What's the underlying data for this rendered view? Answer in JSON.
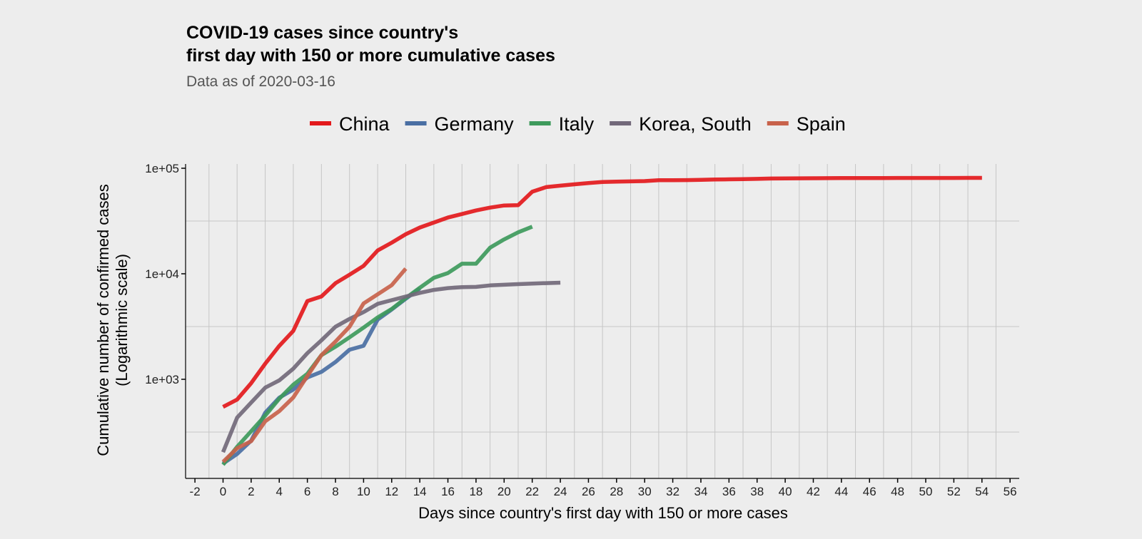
{
  "chart_data": {
    "type": "line",
    "title": [
      "COVID-19 cases since country's",
      "first day with 150 or more cumulative cases"
    ],
    "subtitle": "Data as of 2020-03-16",
    "xlabel": "Days since country's first day with 150 or more cases",
    "ylabel": [
      "Cumulative number of confirmed cases",
      "(Logarithmic scale)"
    ],
    "yscale": "log",
    "xlim": [
      -3,
      57
    ],
    "ylim": [
      115,
      112000
    ],
    "xticks": [
      -2,
      0,
      2,
      4,
      6,
      8,
      10,
      12,
      14,
      16,
      18,
      20,
      22,
      24,
      26,
      28,
      30,
      32,
      34,
      36,
      38,
      40,
      42,
      44,
      46,
      48,
      50,
      52,
      54,
      56
    ],
    "yticks": [
      {
        "value": 1000,
        "label": "1e+03"
      },
      {
        "value": 10000,
        "label": "1e+04"
      },
      {
        "value": 100000,
        "label": "1e+05"
      }
    ],
    "grid": true,
    "legend_position": "top",
    "series": [
      {
        "name": "China",
        "color": "#e3191c",
        "values": [
          548,
          643,
          920,
          1406,
          2075,
          2877,
          5509,
          6087,
          8141,
          9802,
          11891,
          16630,
          19716,
          23707,
          27440,
          30587,
          34110,
          36814,
          39829,
          42354,
          44386,
          44759,
          59895,
          66358,
          68413,
          70513,
          72434,
          74211,
          74619,
          75077,
          75550,
          77001,
          77022,
          77241,
          77754,
          78166,
          78600,
          78928,
          79356,
          79932,
          80136,
          80261,
          80386,
          80537,
          80690,
          80770,
          80823,
          80860,
          80887,
          80921,
          80932,
          80945,
          80977,
          81003,
          81033
        ]
      },
      {
        "name": "Germany",
        "color": "#4a6fa3",
        "values": [
          159,
          196,
          262,
          482,
          670,
          799,
          1040,
          1176,
          1457,
          1908,
          2078,
          3675,
          4585,
          5795,
          7272
        ]
      },
      {
        "name": "Italy",
        "color": "#3e9a5c",
        "values": [
          155,
          229,
          322,
          453,
          655,
          888,
          1128,
          1694,
          2036,
          2502,
          3089,
          3858,
          4636,
          5883,
          7375,
          9172,
          10149,
          12462,
          12462,
          17660,
          21157,
          24747,
          27980
        ]
      },
      {
        "name": "Korea, South",
        "color": "#72697a",
        "values": [
          204,
          433,
          602,
          833,
          977,
          1261,
          1766,
          2337,
          3150,
          3736,
          4335,
          5186,
          5621,
          6088,
          6593,
          7041,
          7314,
          7478,
          7513,
          7755,
          7869,
          7979,
          8086,
          8162,
          8236
        ]
      },
      {
        "name": "Spain",
        "color": "#c8624b",
        "values": [
          165,
          222,
          259,
          400,
          500,
          673,
          1073,
          1695,
          2277,
          3146,
          5232,
          6391,
          7798,
          11178
        ]
      }
    ]
  }
}
